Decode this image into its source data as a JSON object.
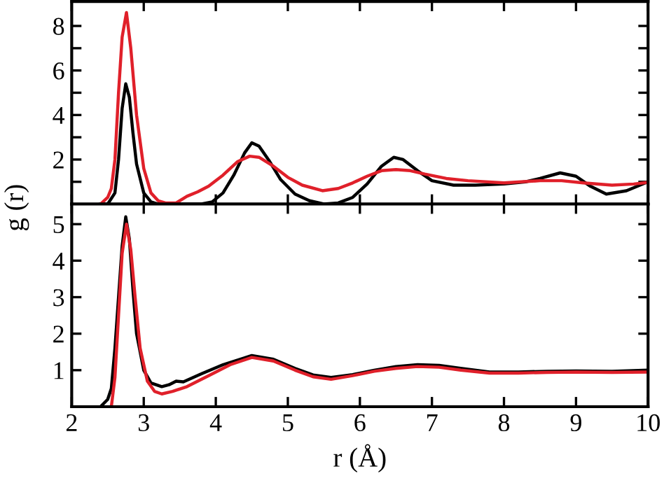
{
  "chart_data": [
    {
      "type": "line",
      "ylabel": "g (r)",
      "xlim": [
        2,
        10
      ],
      "xticks": [
        2,
        3,
        4,
        5,
        6,
        7,
        8,
        9,
        10
      ],
      "ylim": [
        0,
        9.1
      ],
      "yticks": [
        {
          "value": 1,
          "label": null
        },
        2,
        {
          "value": 3,
          "label": null
        },
        4,
        {
          "value": 5,
          "label": null
        },
        6,
        {
          "value": 7,
          "label": null
        },
        8
      ],
      "tick_labels": "y",
      "series": [
        {
          "color": "#000000",
          "x": [
            2.4,
            2.5,
            2.6,
            2.65,
            2.7,
            2.75,
            2.8,
            2.85,
            2.9,
            3.0,
            3.1,
            3.2,
            3.5,
            3.8,
            3.95,
            4.1,
            4.25,
            4.4,
            4.5,
            4.6,
            4.75,
            4.9,
            5.1,
            5.3,
            5.5,
            5.7,
            5.9,
            6.1,
            6.3,
            6.47,
            6.6,
            6.8,
            7.0,
            7.3,
            7.6,
            8.0,
            8.3,
            8.5,
            8.78,
            9.0,
            9.2,
            9.42,
            9.7,
            10.0
          ],
          "values": [
            0,
            0,
            0.5,
            2,
            4.3,
            5.4,
            4.8,
            3.2,
            1.8,
            0.5,
            0.1,
            0,
            0,
            0,
            0.1,
            0.5,
            1.3,
            2.3,
            2.75,
            2.6,
            1.9,
            1.1,
            0.45,
            0.15,
            0,
            0.05,
            0.3,
            0.9,
            1.7,
            2.1,
            2.0,
            1.5,
            1.05,
            0.85,
            0.85,
            0.9,
            1.0,
            1.15,
            1.4,
            1.25,
            0.8,
            0.45,
            0.6,
            1.0
          ]
        },
        {
          "color": "#e0202a",
          "x": [
            2.4,
            2.5,
            2.55,
            2.6,
            2.65,
            2.7,
            2.76,
            2.82,
            2.9,
            3.0,
            3.1,
            3.2,
            3.3,
            3.45,
            3.6,
            3.75,
            3.9,
            4.1,
            4.3,
            4.47,
            4.6,
            4.8,
            5.0,
            5.2,
            5.48,
            5.7,
            5.9,
            6.1,
            6.3,
            6.5,
            6.7,
            6.9,
            7.2,
            7.5,
            8.0,
            8.5,
            8.8,
            9.1,
            9.5,
            9.8,
            10.0
          ],
          "values": [
            0,
            0.3,
            0.7,
            2,
            5,
            7.5,
            8.6,
            7,
            4,
            1.6,
            0.5,
            0.15,
            0.05,
            0.05,
            0.35,
            0.55,
            0.8,
            1.3,
            1.9,
            2.15,
            2.1,
            1.7,
            1.2,
            0.85,
            0.6,
            0.7,
            0.95,
            1.25,
            1.5,
            1.55,
            1.5,
            1.35,
            1.15,
            1.05,
            0.95,
            1.05,
            1.05,
            0.95,
            0.85,
            0.9,
            0.97
          ]
        }
      ]
    },
    {
      "type": "line",
      "xlabel": "r (Å)",
      "xlim": [
        2,
        10
      ],
      "xticks": [
        2,
        3,
        4,
        5,
        6,
        7,
        8,
        9,
        10
      ],
      "ylim": [
        0,
        5.55
      ],
      "yticks": [
        1,
        2,
        3,
        4,
        5
      ],
      "series": [
        {
          "color": "#000000",
          "x": [
            2.4,
            2.5,
            2.55,
            2.6,
            2.65,
            2.7,
            2.75,
            2.8,
            2.85,
            2.9,
            3.0,
            3.1,
            3.25,
            3.35,
            3.45,
            3.55,
            3.8,
            4.1,
            4.5,
            4.8,
            5.1,
            5.35,
            5.6,
            5.9,
            6.2,
            6.5,
            6.8,
            7.1,
            7.4,
            7.8,
            8.2,
            8.6,
            9.0,
            9.5,
            10.0
          ],
          "values": [
            0,
            0.2,
            0.5,
            1.6,
            3,
            4.4,
            5.2,
            4.6,
            3.2,
            2.0,
            1.0,
            0.65,
            0.55,
            0.6,
            0.7,
            0.68,
            0.9,
            1.15,
            1.4,
            1.3,
            1.05,
            0.87,
            0.8,
            0.88,
            1.0,
            1.1,
            1.15,
            1.13,
            1.05,
            0.95,
            0.95,
            0.97,
            0.98,
            0.97,
            1.0
          ]
        },
        {
          "color": "#e0202a",
          "x": [
            2.55,
            2.6,
            2.65,
            2.7,
            2.76,
            2.82,
            2.88,
            2.95,
            3.05,
            3.15,
            3.25,
            3.4,
            3.6,
            3.9,
            4.2,
            4.5,
            4.8,
            5.1,
            5.35,
            5.6,
            5.9,
            6.2,
            6.5,
            6.8,
            7.1,
            7.4,
            7.8,
            8.2,
            8.6,
            9.0,
            9.5,
            10.0
          ],
          "values": [
            0,
            0.8,
            2.5,
            4.2,
            5.0,
            4.3,
            3.0,
            1.6,
            0.7,
            0.42,
            0.35,
            0.42,
            0.55,
            0.85,
            1.15,
            1.35,
            1.25,
            1.0,
            0.82,
            0.75,
            0.85,
            0.97,
            1.05,
            1.1,
            1.08,
            1.0,
            0.92,
            0.92,
            0.94,
            0.95,
            0.94,
            0.95
          ]
        }
      ]
    }
  ]
}
